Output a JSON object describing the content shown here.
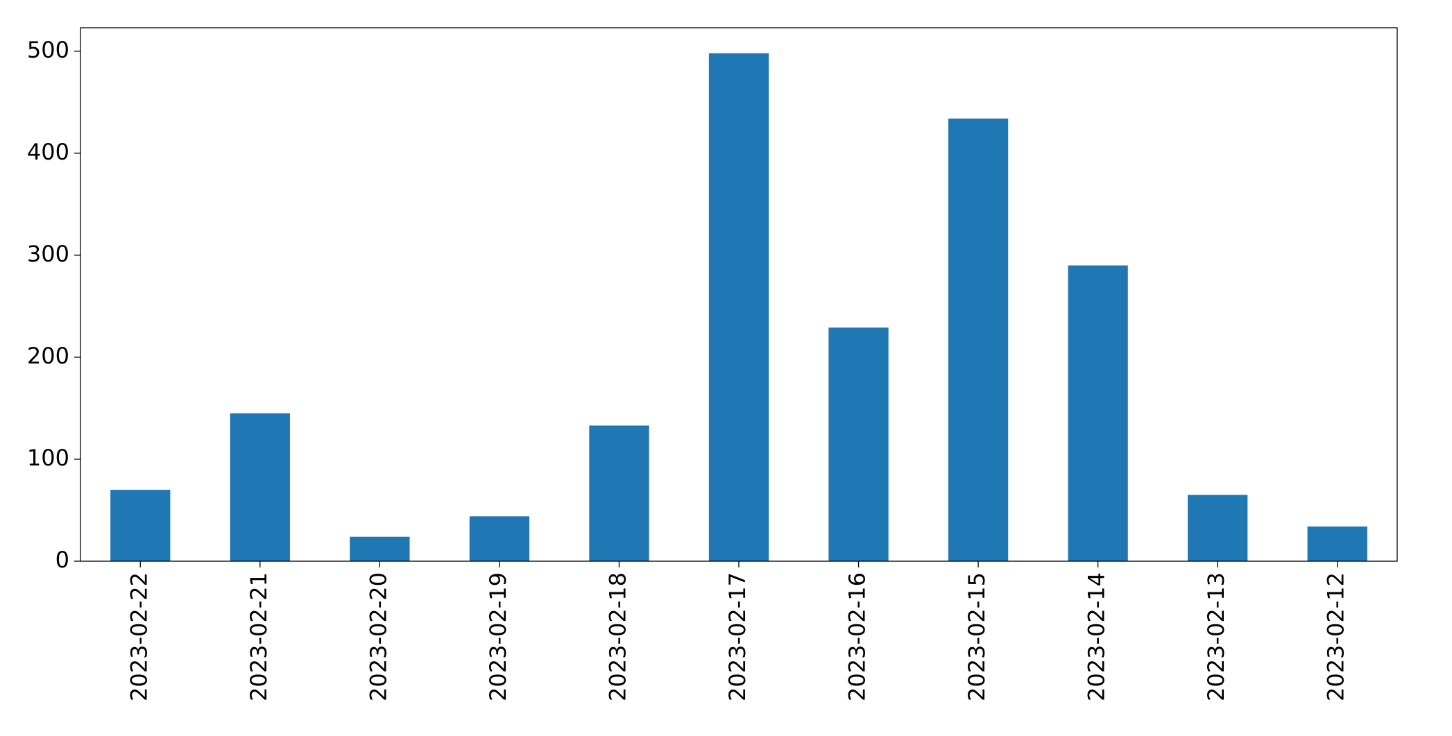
{
  "chart_data": {
    "type": "bar",
    "categories": [
      "2023-02-22",
      "2023-02-21",
      "2023-02-20",
      "2023-02-19",
      "2023-02-18",
      "2023-02-17",
      "2023-02-16",
      "2023-02-15",
      "2023-02-14",
      "2023-02-13",
      "2023-02-12"
    ],
    "values": [
      70,
      145,
      24,
      44,
      133,
      498,
      229,
      434,
      290,
      65,
      34
    ],
    "color": "#1f77b4",
    "ylim": [
      0,
      523
    ],
    "yticks": [
      0,
      100,
      200,
      300,
      400,
      500
    ],
    "grid": false
  }
}
